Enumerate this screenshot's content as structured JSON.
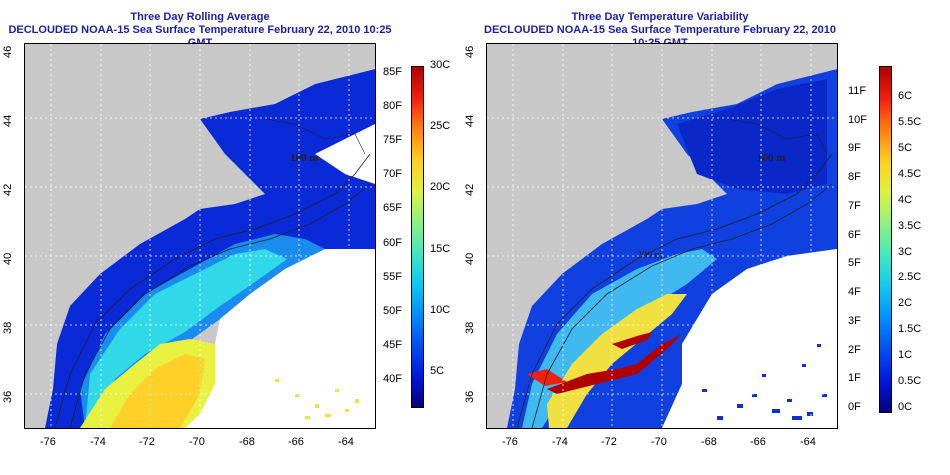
{
  "left": {
    "title_line1": "Three Day Rolling Average",
    "title_line2": "DECLOUDED NOAA-15 Sea Surface Temperature February 22, 2010 10:25 GMT",
    "contour_label": "100 m",
    "colorbar": {
      "palette": [
        "#06007a",
        "#0018d8",
        "#0050f0",
        "#0090f8",
        "#10c8f0",
        "#40e8c0",
        "#90f080",
        "#e0f040",
        "#ffd020",
        "#ff8010",
        "#f02010",
        "#b00000"
      ],
      "fahrenheit_labels": [
        "40F",
        "45F",
        "50F",
        "55F",
        "60F",
        "65F",
        "70F",
        "75F",
        "80F",
        "85F"
      ],
      "celsius_labels": [
        "5C",
        "10C",
        "15C",
        "20C",
        "25C",
        "30C"
      ]
    }
  },
  "right": {
    "title_line1": "Three Day Temperature Variability",
    "title_line2": "DECLOUDED NOAA-15 Sea Surface Temperature February 22, 2010 10:25 GMT",
    "contour_label_a": "100 m",
    "contour_label_b": "200 m",
    "colorbar": {
      "palette": [
        "#06007a",
        "#0018d8",
        "#0050f0",
        "#0090f8",
        "#10c8f0",
        "#40e8c0",
        "#90f080",
        "#e0f040",
        "#ffd020",
        "#ff8010",
        "#f02010",
        "#b00000"
      ],
      "fahrenheit_labels": [
        "0F",
        "1F",
        "2F",
        "3F",
        "4F",
        "5F",
        "6F",
        "7F",
        "8F",
        "9F",
        "10F",
        "11F"
      ],
      "celsius_labels": [
        "0C",
        "0.5C",
        "1C",
        "1.5C",
        "2C",
        "2.5C",
        "3C",
        "3.5C",
        "4C",
        "4.5C",
        "5C",
        "5.5C",
        "6C"
      ]
    }
  },
  "axes": {
    "lon_labels": [
      "-76",
      "-74",
      "-72",
      "-70",
      "-68",
      "-66",
      "-64"
    ],
    "lat_labels": [
      "36",
      "38",
      "40",
      "42",
      "44",
      "46"
    ]
  },
  "colors": {
    "land": "#c8c8c8",
    "title": "#1b1fa8",
    "grid": "#ffffff"
  }
}
